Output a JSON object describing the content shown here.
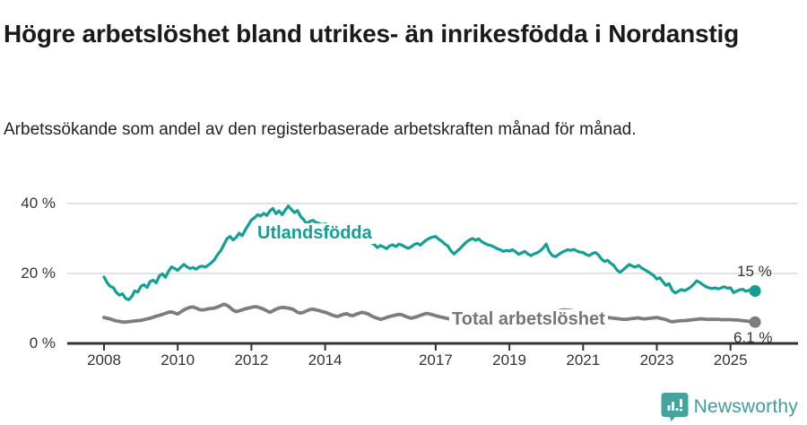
{
  "header": {
    "title": "Högre arbetslöshet bland utrikes- än inrikesfödda i Nordanstig",
    "subtitle": "Arbetssökande som andel av den registerbaserade arbetskraften månad för månad."
  },
  "footer": {
    "brand": "Newsworthy",
    "logo_icon": "bar-chart-speech-bubble-icon"
  },
  "colors": {
    "series_utlandsfodda": "#12a096",
    "series_total": "#7d7d81",
    "label_total": "#75757a",
    "gridline": "#d9d9d9",
    "axis": "#333333",
    "brand_teal": "#3f9e98",
    "title_text": "#1a1a1a"
  },
  "chart_data": {
    "type": "line",
    "title": "Högre arbetslöshet bland utrikes- än inrikesfödda i Nordanstig",
    "subtitle": "Arbetssökande som andel av den registerbaserade arbetskraften månad för månad.",
    "xlabel": "",
    "ylabel": "",
    "ylim": [
      0,
      42
    ],
    "xlim": [
      2007.0,
      2026.3
    ],
    "grid": "horizontal",
    "legend_position": "inline-labels",
    "x_start_year": 2008,
    "points_per_year": 12,
    "y_ticks": [
      {
        "value": 0,
        "label": "0 %"
      },
      {
        "value": 20,
        "label": "20 %"
      },
      {
        "value": 40,
        "label": "40 %"
      }
    ],
    "x_ticks": [
      {
        "value": 2008,
        "label": "2008"
      },
      {
        "value": 2010,
        "label": "2010"
      },
      {
        "value": 2012,
        "label": "2012"
      },
      {
        "value": 2014,
        "label": "2014"
      },
      {
        "value": 2017,
        "label": "2017"
      },
      {
        "value": 2019,
        "label": "2019"
      },
      {
        "value": 2021,
        "label": "2021"
      },
      {
        "value": 2023,
        "label": "2023"
      },
      {
        "value": 2025,
        "label": "2025"
      }
    ],
    "series": [
      {
        "name": "Utlandsfödda",
        "color": "#12a096",
        "end_label": "15 %",
        "end_value": 15.0,
        "values": [
          19.0,
          17.4,
          16.3,
          16.0,
          14.6,
          13.8,
          14.2,
          12.9,
          12.5,
          13.3,
          15.0,
          14.7,
          16.3,
          16.8,
          16.0,
          17.7,
          18.1,
          17.3,
          19.3,
          19.9,
          18.9,
          20.6,
          21.9,
          21.4,
          20.9,
          21.8,
          22.6,
          21.9,
          21.4,
          21.7,
          21.2,
          21.9,
          22.1,
          21.8,
          22.4,
          23.1,
          24.0,
          25.4,
          26.5,
          28.2,
          29.9,
          30.6,
          29.6,
          30.3,
          31.5,
          30.8,
          32.4,
          33.9,
          35.3,
          35.9,
          36.8,
          36.4,
          37.2,
          36.6,
          37.9,
          38.6,
          37.1,
          37.9,
          36.8,
          38.1,
          39.3,
          38.3,
          37.4,
          38.0,
          36.3,
          35.4,
          34.2,
          34.9,
          35.2,
          34.6,
          34.3,
          34.0,
          34.2,
          33.9,
          33.6,
          33.3,
          33.0,
          32.6,
          32.3,
          31.9,
          31.6,
          31.2,
          30.9,
          30.5,
          30.2,
          29.7,
          29.3,
          28.8,
          28.3,
          27.4,
          28.0,
          27.6,
          27.1,
          27.9,
          28.2,
          27.7,
          28.4,
          28.1,
          27.6,
          27.2,
          27.6,
          28.3,
          28.6,
          28.1,
          28.9,
          29.6,
          30.1,
          30.4,
          30.6,
          29.8,
          29.2,
          28.4,
          27.8,
          26.4,
          25.6,
          26.4,
          27.2,
          28.1,
          29.0,
          29.6,
          30.0,
          29.5,
          29.9,
          29.1,
          28.6,
          28.2,
          28.0,
          27.6,
          27.1,
          26.8,
          26.3,
          26.6,
          26.4,
          26.8,
          26.2,
          25.5,
          25.9,
          26.3,
          25.6,
          25.1,
          25.6,
          25.9,
          26.4,
          27.3,
          28.4,
          26.2,
          25.1,
          24.8,
          25.4,
          26.0,
          26.4,
          26.8,
          26.6,
          26.9,
          26.4,
          26.1,
          26.0,
          25.4,
          25.1,
          25.7,
          26.0,
          25.3,
          24.1,
          23.4,
          23.8,
          22.9,
          22.3,
          21.0,
          20.3,
          21.0,
          21.8,
          22.6,
          22.1,
          21.8,
          22.3,
          21.6,
          21.1,
          20.6,
          20.0,
          19.4,
          18.4,
          18.8,
          17.6,
          16.6,
          17.1,
          15.2,
          14.4,
          14.9,
          15.4,
          15.1,
          15.5,
          16.1,
          16.9,
          17.9,
          17.4,
          16.8,
          16.2,
          15.9,
          15.7,
          15.9,
          15.6,
          15.9,
          16.2,
          15.8,
          15.9,
          14.5,
          15.0,
          15.3,
          15.5,
          14.9,
          15.2,
          15.1,
          15.0
        ]
      },
      {
        "name": "Total arbetslöshet",
        "color": "#7d7d81",
        "end_label": "6,1 %",
        "end_value": 6.1,
        "values": [
          7.4,
          7.2,
          7.0,
          6.7,
          6.4,
          6.3,
          6.1,
          6.1,
          6.2,
          6.3,
          6.4,
          6.5,
          6.6,
          6.8,
          7.0,
          7.2,
          7.5,
          7.8,
          8.0,
          8.3,
          8.6,
          8.9,
          9.0,
          8.7,
          8.4,
          9.0,
          9.6,
          10.0,
          10.3,
          10.4,
          10.1,
          9.7,
          9.6,
          9.7,
          9.9,
          10.0,
          10.1,
          10.4,
          10.8,
          11.2,
          10.9,
          10.3,
          9.5,
          9.1,
          9.3,
          9.6,
          9.9,
          10.1,
          10.3,
          10.5,
          10.4,
          10.1,
          9.8,
          9.3,
          8.9,
          9.3,
          9.8,
          10.1,
          10.3,
          10.2,
          10.1,
          9.9,
          9.5,
          8.9,
          8.7,
          8.9,
          9.3,
          9.7,
          9.8,
          9.6,
          9.4,
          9.1,
          8.9,
          8.6,
          8.2,
          7.9,
          7.7,
          8.0,
          8.3,
          8.5,
          8.1,
          7.9,
          8.3,
          8.6,
          8.9,
          8.7,
          8.4,
          7.9,
          7.5,
          7.2,
          6.9,
          7.1,
          7.4,
          7.7,
          7.9,
          8.1,
          8.3,
          8.2,
          7.8,
          7.5,
          7.2,
          7.4,
          7.7,
          8.0,
          8.3,
          8.6,
          8.4,
          8.2,
          7.9,
          7.7,
          7.5,
          7.3,
          7.1,
          6.9,
          6.8,
          6.9,
          7.0,
          7.1,
          7.2,
          7.1,
          7.0,
          6.9,
          6.8,
          6.7,
          6.6,
          6.5,
          6.5,
          6.6,
          6.7,
          6.8,
          6.9,
          6.8,
          6.7,
          6.6,
          6.5,
          6.4,
          6.4,
          6.5,
          6.6,
          6.7,
          6.9,
          7.0,
          7.1,
          7.3,
          7.6,
          8.0,
          8.6,
          9.0,
          9.3,
          9.5,
          9.6,
          9.5,
          9.4,
          9.3,
          9.2,
          9.0,
          8.8,
          8.6,
          8.4,
          8.2,
          8.0,
          7.8,
          7.6,
          7.5,
          7.4,
          7.3,
          7.2,
          7.1,
          7.0,
          6.9,
          6.9,
          7.0,
          7.1,
          7.2,
          7.3,
          7.1,
          7.0,
          7.1,
          7.2,
          7.3,
          7.4,
          7.2,
          7.0,
          6.8,
          6.4,
          6.2,
          6.3,
          6.4,
          6.5,
          6.5,
          6.6,
          6.7,
          6.8,
          6.9,
          7.0,
          7.0,
          6.9,
          6.9,
          6.9,
          6.9,
          6.9,
          6.8,
          6.8,
          6.8,
          6.8,
          6.7,
          6.7,
          6.6,
          6.5,
          6.4,
          6.3,
          6.2,
          6.1
        ]
      }
    ]
  }
}
